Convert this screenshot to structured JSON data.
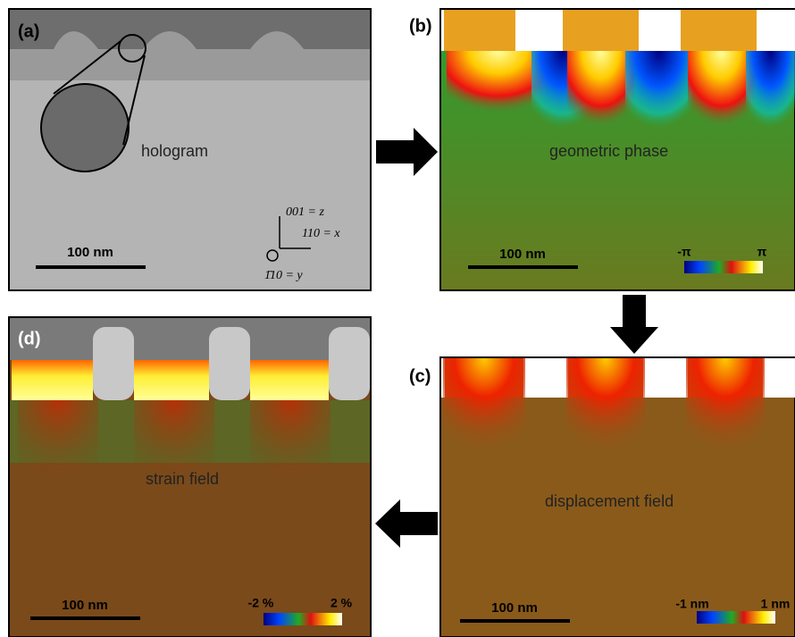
{
  "panels": [
    {
      "label": "(a)",
      "caption": "hologram",
      "scale_bar": "100 nm",
      "axes": [
        "001 = z",
        "110 = x",
        "1̄10 = y"
      ]
    },
    {
      "label": "(b)",
      "caption": "geometric phase",
      "scale_bar": "100 nm",
      "colorbar": {
        "min": "-π",
        "max": "π"
      }
    },
    {
      "label": "(c)",
      "caption": "displacement field",
      "scale_bar": "100 nm",
      "colorbar": {
        "min": "-1 nm",
        "max": "1 nm"
      }
    },
    {
      "label": "(d)",
      "caption": "strain field",
      "scale_bar": "100 nm",
      "colorbar": {
        "min": "-2 %",
        "max": "2 %"
      }
    }
  ]
}
